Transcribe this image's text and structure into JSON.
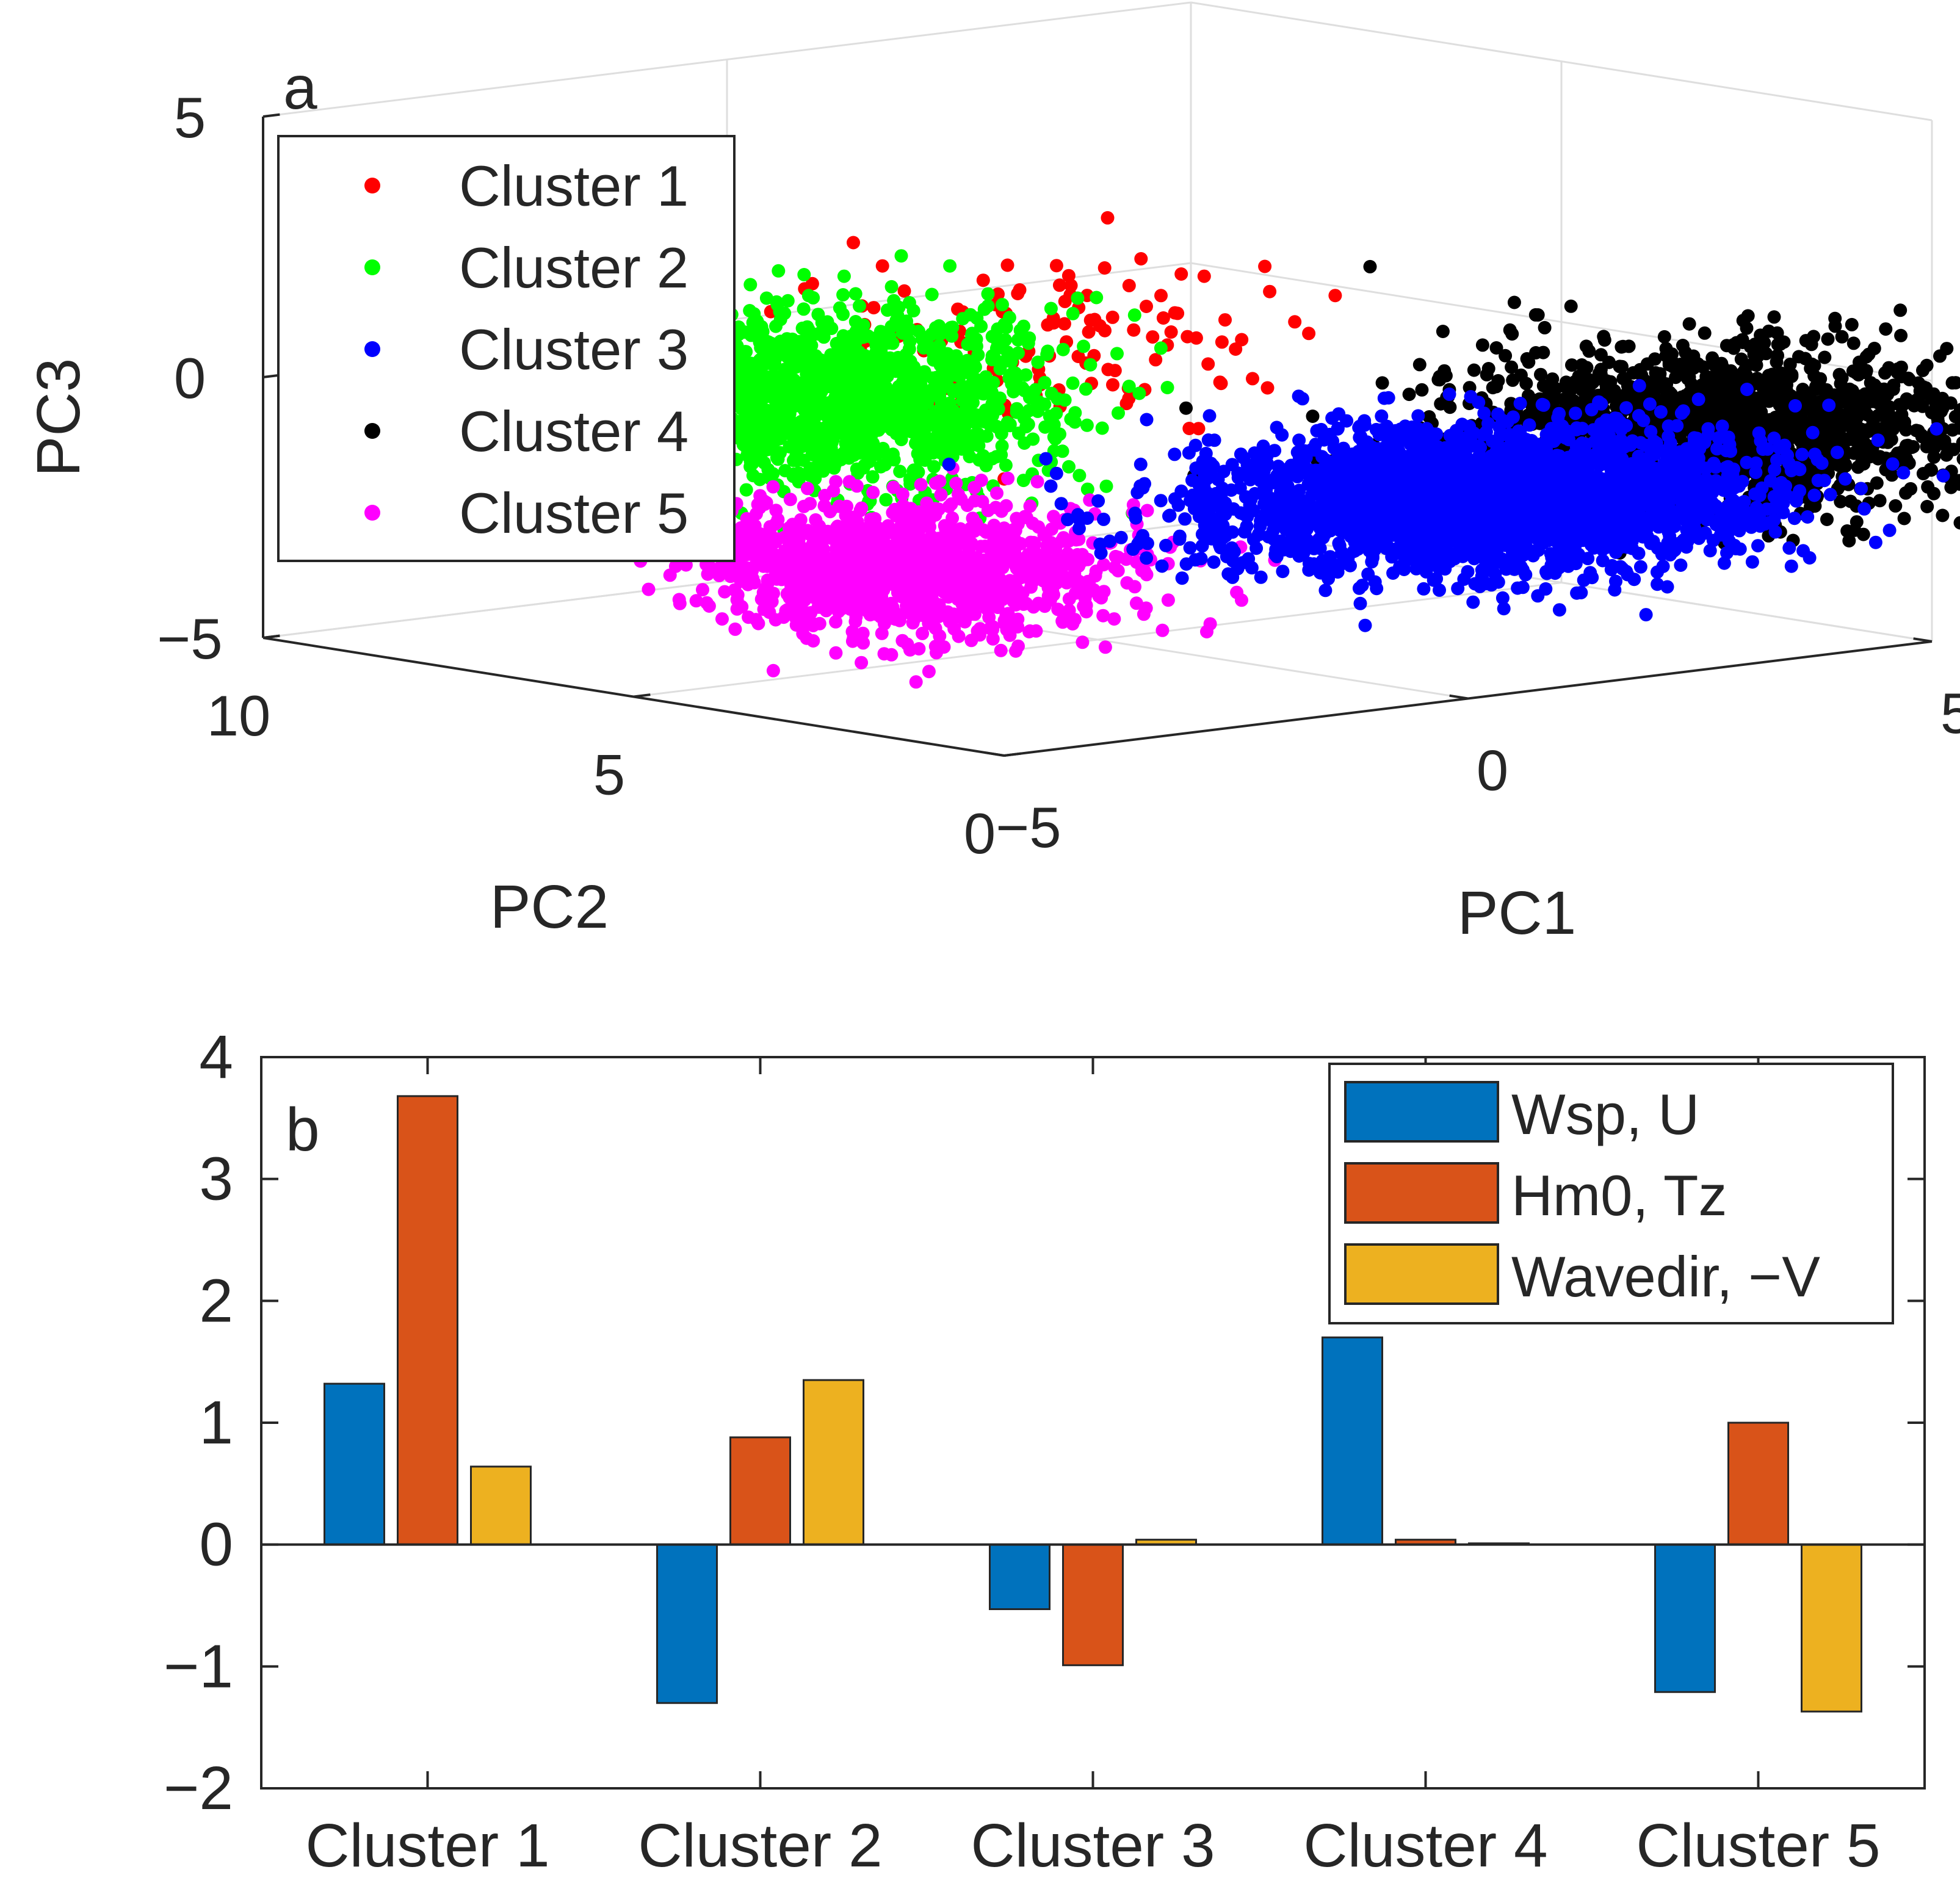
{
  "chart_data": [
    {
      "type": "scatter",
      "panel_label": "a",
      "projection": "3d",
      "xlabel": "PC1",
      "ylabel": "PC2",
      "zlabel": "PC3",
      "xlim": [
        -5,
        5
      ],
      "ylim": [
        0,
        10
      ],
      "zlim": [
        -5,
        5
      ],
      "xticks": [
        "−5",
        "0",
        "5"
      ],
      "yticks": [
        "0",
        "5",
        "10"
      ],
      "zticks": [
        "−5",
        "0",
        "5"
      ],
      "grid": true,
      "legend_position": "top-left",
      "series": [
        {
          "name": "Cluster 1",
          "color": "#ff0000",
          "centroid": {
            "x": -3.5,
            "y": 1.5,
            "z": 2.3
          },
          "spread": {
            "x": 1.3,
            "y": 1.0,
            "z": 0.8
          },
          "n": 130
        },
        {
          "name": "Cluster 2",
          "color": "#00ff00",
          "centroid": {
            "x": -4.0,
            "y": 3.5,
            "z": 0.8
          },
          "spread": {
            "x": 0.9,
            "y": 1.0,
            "z": 0.8
          },
          "n": 1400
        },
        {
          "name": "Cluster 3",
          "color": "#0000ff",
          "centroid": {
            "x": -1.0,
            "y": -1.5,
            "z": -0.6
          },
          "spread": {
            "x": 1.2,
            "y": 1.2,
            "z": 0.6
          },
          "n": 2600
        },
        {
          "name": "Cluster 4",
          "color": "#000000",
          "centroid": {
            "x": 1.5,
            "y": -1.5,
            "z": 0.2
          },
          "spread": {
            "x": 1.1,
            "y": 1.2,
            "z": 0.7
          },
          "n": 1600
        },
        {
          "name": "Cluster 5",
          "color": "#ff00ff",
          "centroid": {
            "x": -4.2,
            "y": 2.5,
            "z": -2.2
          },
          "spread": {
            "x": 1.0,
            "y": 1.0,
            "z": 0.6
          },
          "n": 1200
        }
      ]
    },
    {
      "type": "bar",
      "panel_label": "b",
      "categories": [
        "Cluster 1",
        "Cluster 2",
        "Cluster 3",
        "Cluster 4",
        "Cluster 5"
      ],
      "ylim": [
        -2,
        4
      ],
      "yticks": [
        "−2",
        "−1",
        "0",
        "1",
        "2",
        "3",
        "4"
      ],
      "legend_position": "top-right",
      "series": [
        {
          "name": "Wsp, U",
          "color": "#0072bd",
          "values": [
            1.32,
            -1.3,
            -0.53,
            1.7,
            -1.21
          ]
        },
        {
          "name": "Hm0, Tz",
          "color": "#d95319",
          "values": [
            3.68,
            0.88,
            -0.99,
            0.04,
            1.0
          ]
        },
        {
          "name": "Wavedir, −V",
          "color": "#edb120",
          "values": [
            0.64,
            1.35,
            0.04,
            0.01,
            -1.37
          ]
        }
      ]
    }
  ]
}
